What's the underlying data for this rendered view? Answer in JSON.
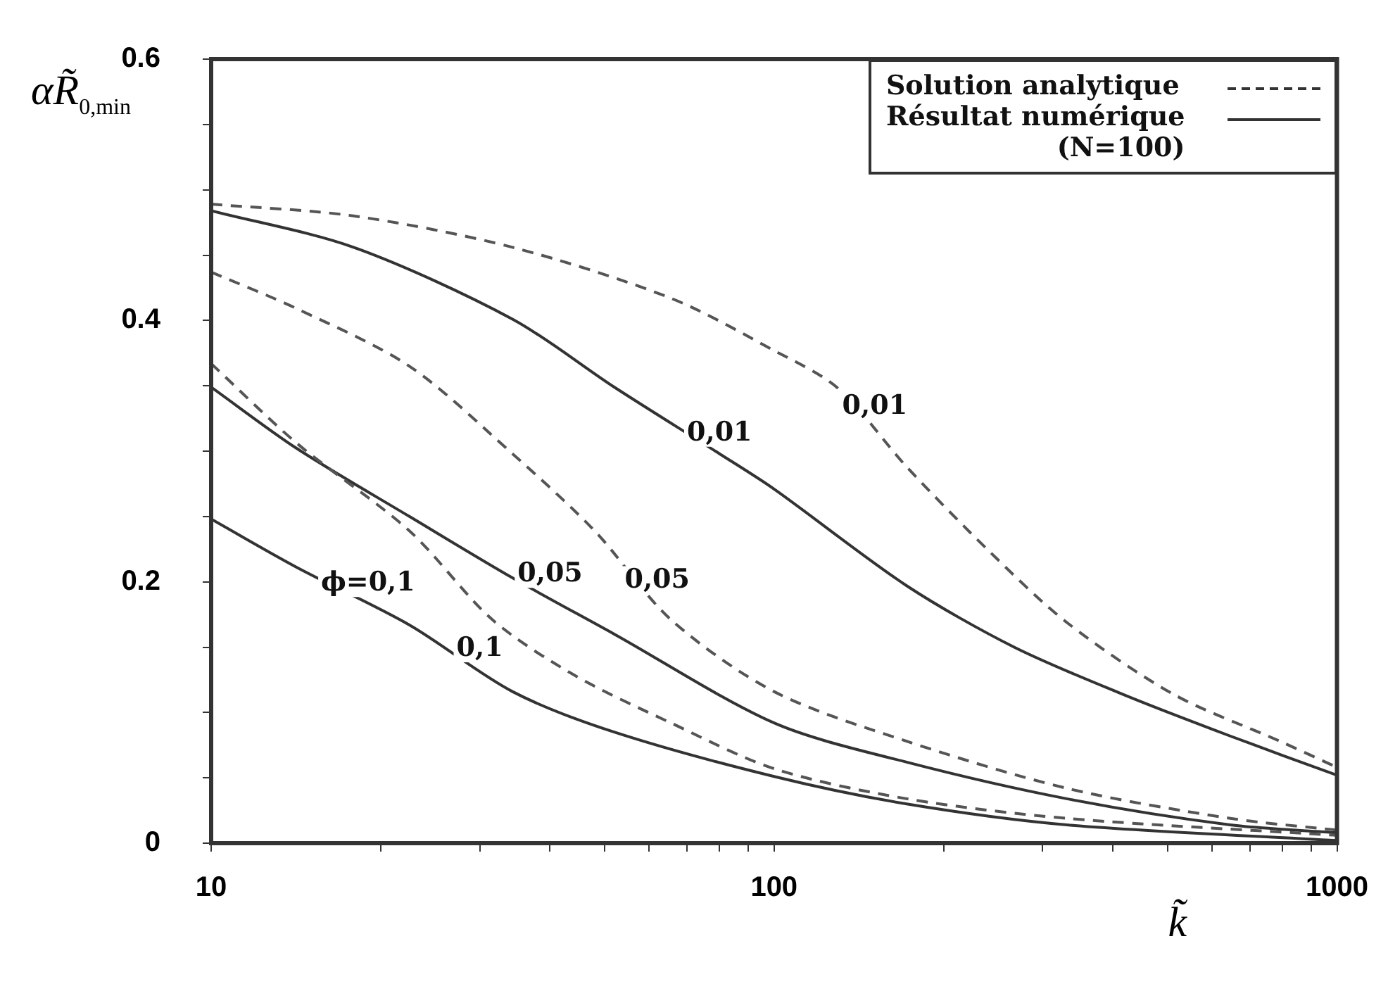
{
  "chart_data": {
    "type": "line",
    "xlabel": "k̃",
    "ylabel": "αR̃$_{0,min}$",
    "log": "x",
    "grid": false,
    "marker": "none",
    "xlim": [
      10,
      1000
    ],
    "ylim": [
      0,
      0.6
    ],
    "xticks": [
      10,
      {
        "value": 20,
        "label": null
      },
      {
        "value": 30,
        "label": null
      },
      {
        "value": 40,
        "label": null
      },
      {
        "value": 50,
        "label": null
      },
      {
        "value": 60,
        "label": null
      },
      {
        "value": 70,
        "label": null
      },
      {
        "value": 80,
        "label": null
      },
      {
        "value": 90,
        "label": null
      },
      100,
      {
        "value": 200,
        "label": null
      },
      {
        "value": 300,
        "label": null
      },
      {
        "value": 400,
        "label": null
      },
      {
        "value": 500,
        "label": null
      },
      {
        "value": 600,
        "label": null
      },
      {
        "value": 700,
        "label": null
      },
      {
        "value": 800,
        "label": null
      },
      {
        "value": 900,
        "label": null
      },
      1000
    ],
    "yticks": [
      0,
      {
        "value": 0.05,
        "label": null
      },
      {
        "value": 0.1,
        "label": null
      },
      {
        "value": 0.15,
        "label": null
      },
      0.2,
      {
        "value": 0.25,
        "label": null
      },
      {
        "value": 0.3,
        "label": null
      },
      {
        "value": 0.35,
        "label": null
      },
      0.4,
      {
        "value": 0.45,
        "label": null
      },
      {
        "value": 0.5,
        "label": null
      },
      {
        "value": 0.55,
        "label": null
      },
      0.6
    ],
    "series": [
      {
        "color": "#555555",
        "line_style": "dashed",
        "x": [
          10,
          17.9,
          34.3,
          65.6,
          100,
          130,
          172,
          239,
          331,
          512,
          792,
          1000
        ],
        "values": [
          0.489,
          0.48,
          0.456,
          0.417,
          0.377,
          0.348,
          0.288,
          0.225,
          0.169,
          0.114,
          0.078,
          0.058
        ]
      },
      {
        "color": "#333333",
        "line_style": "solid",
        "x": [
          10,
          17.9,
          34.3,
          52,
          80,
          100,
          172,
          267,
          416,
          646,
          1000
        ],
        "values": [
          0.484,
          0.456,
          0.401,
          0.349,
          0.298,
          0.271,
          0.197,
          0.15,
          0.114,
          0.082,
          0.052
        ]
      },
      {
        "color": "#555555",
        "line_style": "dashed",
        "x": [
          10,
          14.2,
          22.5,
          34.3,
          48,
          65.6,
          100,
          172,
          331,
          646,
          1000
        ],
        "values": [
          0.437,
          0.409,
          0.365,
          0.298,
          0.239,
          0.171,
          0.116,
          0.078,
          0.042,
          0.019,
          0.01
        ]
      },
      {
        "color": "#555555",
        "line_style": "dashed",
        "x": [
          10,
          14.2,
          22.5,
          31.6,
          44.4,
          65.6,
          100,
          172,
          331,
          1000
        ],
        "values": [
          0.367,
          0.306,
          0.239,
          0.171,
          0.128,
          0.092,
          0.057,
          0.034,
          0.019,
          0.006
        ]
      },
      {
        "color": "#333333",
        "line_style": "solid",
        "x": [
          10,
          14.2,
          22.5,
          34.3,
          52,
          100,
          172,
          331,
          646,
          1000
        ],
        "values": [
          0.349,
          0.302,
          0.25,
          0.203,
          0.16,
          0.092,
          0.062,
          0.034,
          0.014,
          0.008
        ]
      },
      {
        "color": "#333333",
        "line_style": "solid",
        "x": [
          10,
          14.2,
          22.5,
          34.3,
          52,
          100,
          172,
          331,
          1000
        ],
        "values": [
          0.248,
          0.211,
          0.167,
          0.116,
          0.085,
          0.051,
          0.03,
          0.014,
          0.002
        ]
      }
    ],
    "annotations": [
      "Solution analytique",
      "Résultat numérique\n(N=100)",
      {
        "text": "0,01",
        "x": 151,
        "y": 0.318
      },
      {
        "text": "0,01",
        "x": 80,
        "y": 0.298
      },
      {
        "text": "0,05",
        "x": 62,
        "y": 0.185
      },
      {
        "text": "0,05",
        "x": 40,
        "y": 0.19
      },
      {
        "text": "0,1",
        "x": 30,
        "y": 0.133
      },
      {
        "text": "ϕ=0,1",
        "x": 19,
        "y": 0.183
      }
    ]
  }
}
